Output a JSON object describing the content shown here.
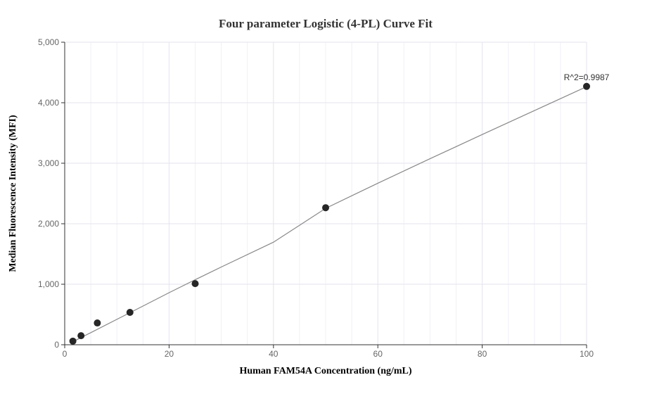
{
  "chart_data": {
    "type": "scatter",
    "title": "Four parameter Logistic (4-PL) Curve Fit",
    "xlabel": "Human FAM54A Concentration (ng/mL)",
    "ylabel": "Median Fluorescence Intensity (MFI)",
    "xlim": [
      0,
      100
    ],
    "ylim": [
      0,
      5000
    ],
    "x_ticks": [
      0,
      20,
      40,
      60,
      80,
      100
    ],
    "y_ticks": [
      0,
      1000,
      2000,
      3000,
      4000,
      5000
    ],
    "x_tick_labels": [
      "0",
      "20",
      "40",
      "60",
      "80",
      "100"
    ],
    "y_tick_labels": [
      "0",
      "1,000",
      "2,000",
      "3,000",
      "4,000",
      "5,000"
    ],
    "grid": true,
    "series": [
      {
        "points": [
          {
            "x": 1.5625,
            "y": 60
          },
          {
            "x": 3.125,
            "y": 150
          },
          {
            "x": 6.25,
            "y": 360
          },
          {
            "x": 12.5,
            "y": 535
          },
          {
            "x": 25,
            "y": 1010
          },
          {
            "x": 50,
            "y": 2265
          },
          {
            "x": 100,
            "y": 4270
          }
        ]
      }
    ],
    "fit_curve": {
      "model": "4-PL",
      "points": [
        {
          "x": 1.5625,
          "y": 50
        },
        {
          "x": 5,
          "y": 200
        },
        {
          "x": 10,
          "y": 420
        },
        {
          "x": 15,
          "y": 640
        },
        {
          "x": 20,
          "y": 860
        },
        {
          "x": 25,
          "y": 1075
        },
        {
          "x": 30,
          "y": 1285
        },
        {
          "x": 40,
          "y": 1695
        },
        {
          "x": 50,
          "y": 2255
        },
        {
          "x": 60,
          "y": 2670
        },
        {
          "x": 70,
          "y": 3075
        },
        {
          "x": 80,
          "y": 3475
        },
        {
          "x": 90,
          "y": 3870
        },
        {
          "x": 100,
          "y": 4265
        }
      ]
    },
    "annotation": "R^2=0.9987"
  }
}
